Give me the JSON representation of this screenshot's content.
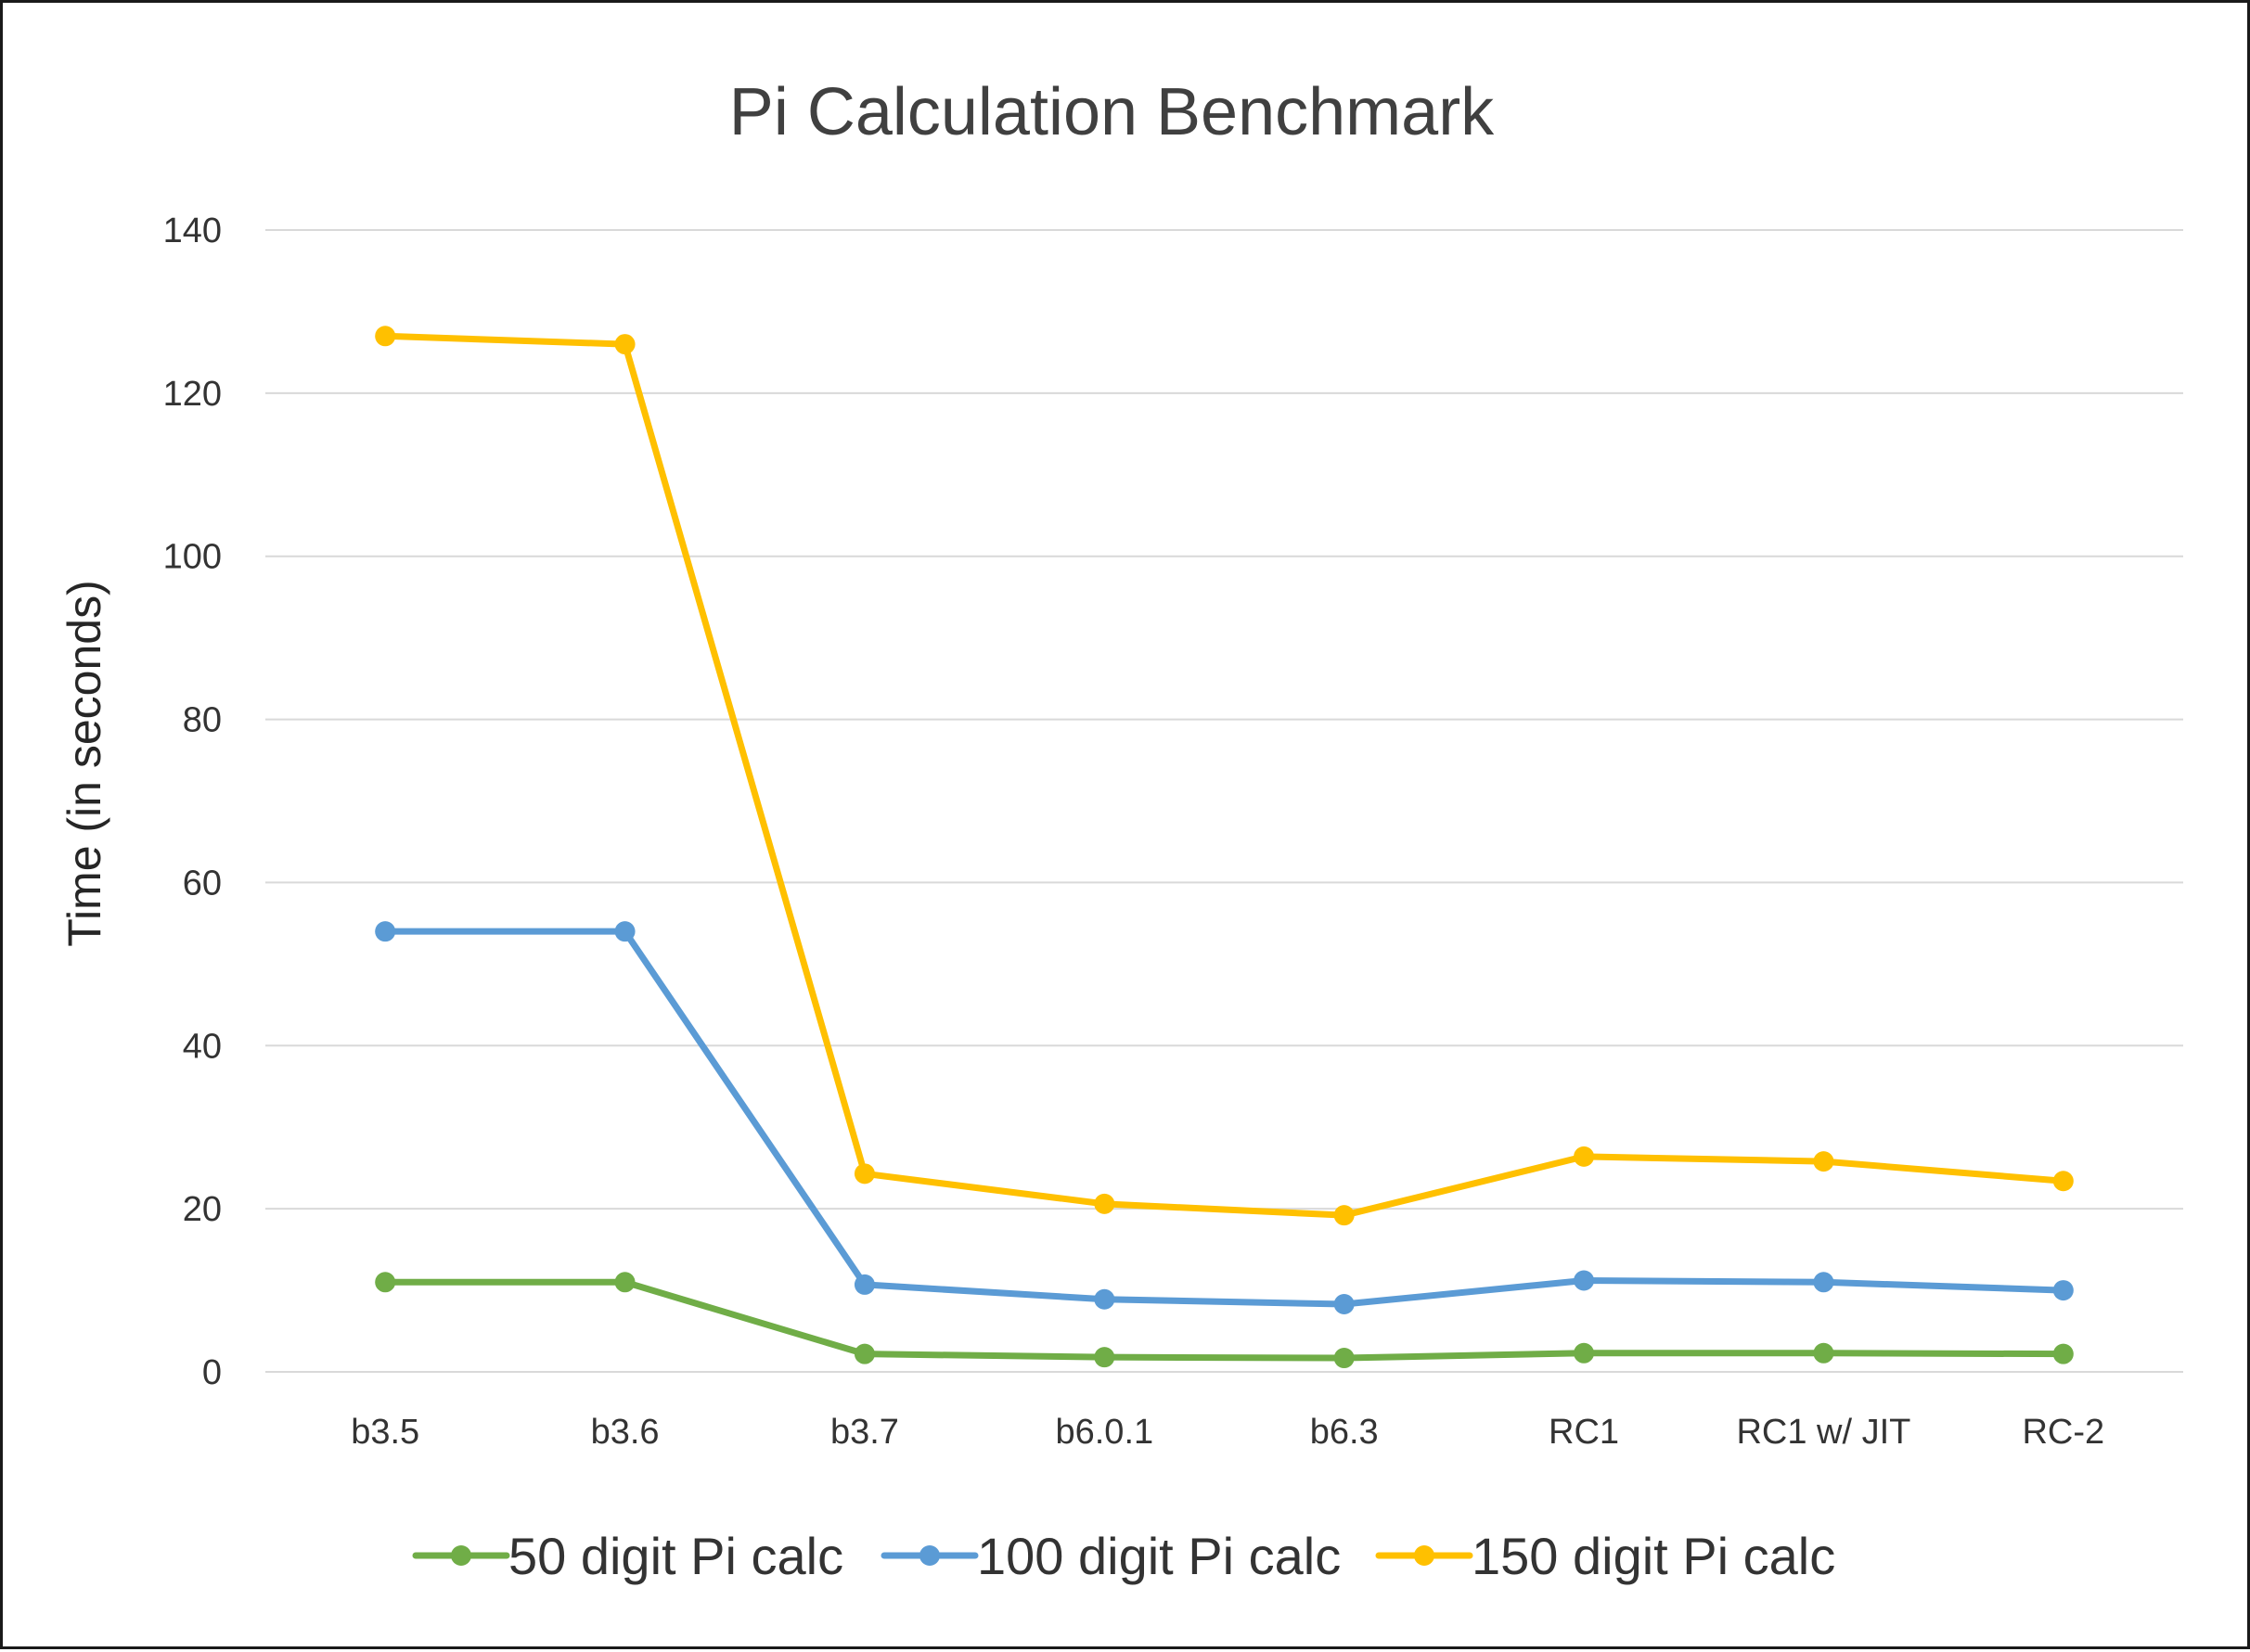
{
  "chart_data": {
    "type": "line",
    "title": "Pi Calculation Benchmark",
    "xlabel": "",
    "ylabel": "Time (in seconds)",
    "ylim": [
      0,
      140
    ],
    "yticks": [
      0,
      20,
      40,
      60,
      80,
      100,
      120,
      140
    ],
    "grid": true,
    "legend_position": "bottom",
    "categories": [
      "b3.5",
      "b3.6",
      "b3.7",
      "b6.0.1",
      "b6.3",
      "RC1",
      "RC1 w/ JIT",
      "RC-2"
    ],
    "series": [
      {
        "name": "50 digit Pi calc",
        "color": "#70AD47",
        "values": [
          11,
          11,
          2.2,
          1.8,
          1.7,
          2.3,
          2.3,
          2.2
        ]
      },
      {
        "name": "100 digit Pi calc",
        "color": "#5B9BD5",
        "values": [
          54,
          54,
          10.7,
          8.9,
          8.3,
          11.2,
          11.0,
          10.0
        ]
      },
      {
        "name": "150 digit Pi calc",
        "color": "#FFC000",
        "values": [
          127,
          126,
          24.3,
          20.6,
          19.2,
          26.4,
          25.8,
          23.4
        ]
      }
    ]
  }
}
